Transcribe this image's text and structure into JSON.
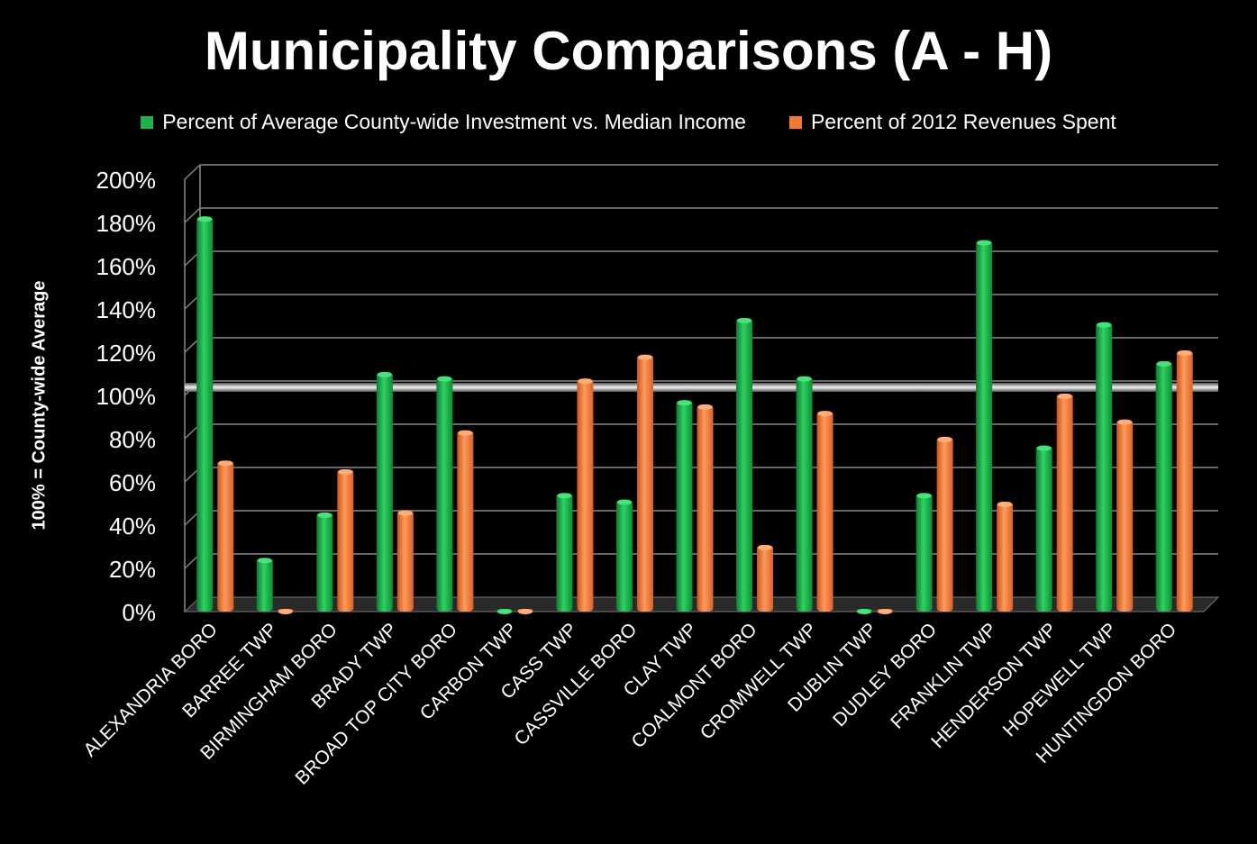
{
  "chart_data": {
    "type": "bar",
    "title": "Municipality Comparisons (A - H)",
    "xlabel": "",
    "ylabel": "100% = County-wide Average",
    "ylim": [
      0,
      200
    ],
    "yticks": [
      "0%",
      "20%",
      "40%",
      "60%",
      "80%",
      "100%",
      "120%",
      "140%",
      "160%",
      "180%",
      "200%"
    ],
    "grid": true,
    "legend_position": "top",
    "reference_line": 100,
    "categories": [
      "ALEXANDRIA BORO",
      "BARREE TWP",
      "BIRMINGHAM BORO",
      "BRADY TWP",
      "BROAD TOP CITY BORO",
      "CARBON TWP",
      "CASS TWP",
      "CASSVILLE BORO",
      "CLAY TWP",
      "COALMONT BORO",
      "CROMWELL TWP",
      "DUBLIN TWP",
      "DUDLEY BORO",
      "FRANKLIN TWP",
      "HENDERSON TWP",
      "HOPEWELL TWP",
      "HUNTINGDON BORO"
    ],
    "series": [
      {
        "name": "Percent of Average County-wide Investment vs. Median Income",
        "color": "#1db34a",
        "values": [
          182,
          24,
          45,
          110,
          108,
          0,
          54,
          51,
          97,
          135,
          108,
          0,
          54,
          171,
          76,
          133,
          115
        ]
      },
      {
        "name": "Percent of 2012 Revenues Spent",
        "color": "#f07a33",
        "values": [
          69,
          0,
          65,
          46,
          83,
          0,
          107,
          118,
          95,
          30,
          92,
          0,
          80,
          50,
          100,
          88,
          120
        ]
      }
    ]
  }
}
